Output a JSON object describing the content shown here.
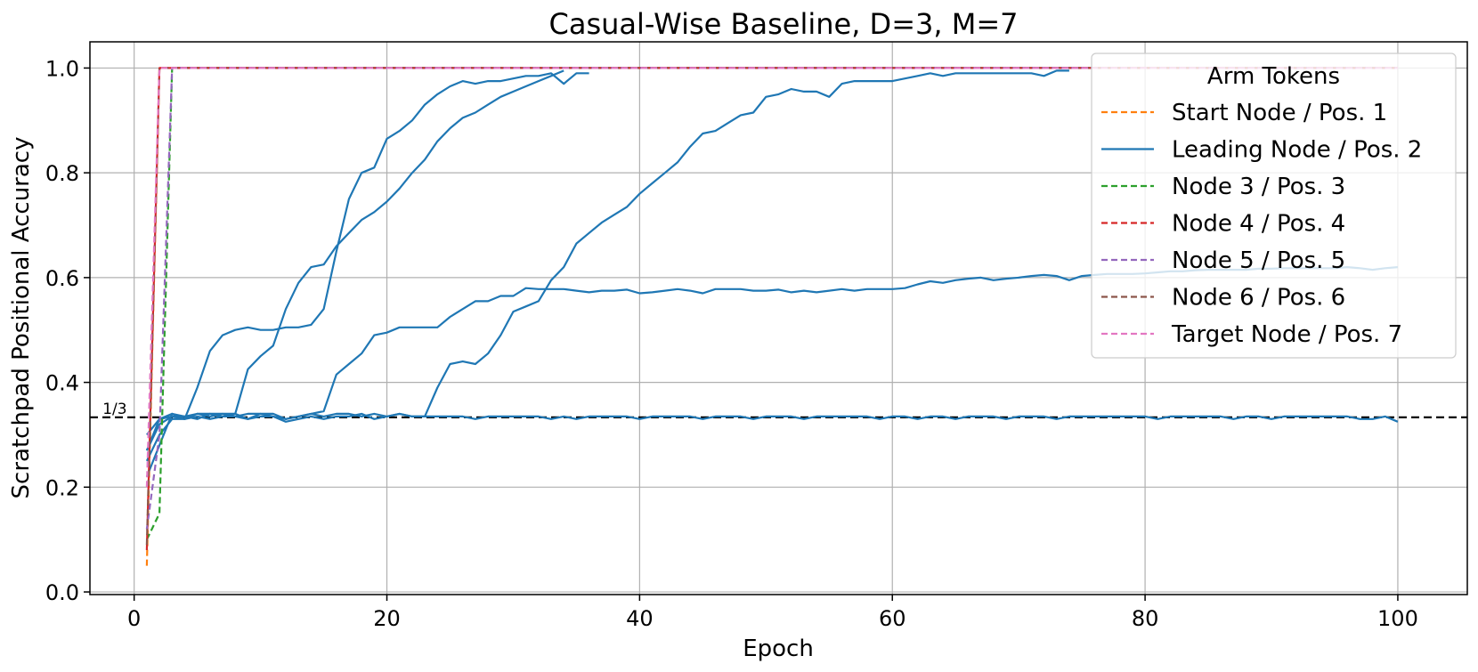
{
  "chart_data": {
    "type": "line",
    "title": "Casual-Wise Baseline, D=3, M=7",
    "xlabel": "Epoch",
    "ylabel": "Scratchpad Positional Accuracy",
    "xlim": [
      -3.5,
      105.5
    ],
    "ylim": [
      -0.005,
      1.05
    ],
    "xticks": [
      "0",
      "20",
      "40",
      "60",
      "80",
      "100"
    ],
    "xtick_values": [
      0,
      20,
      40,
      60,
      80,
      100
    ],
    "yticks": [
      "0.0",
      "0.2",
      "0.4",
      "0.6",
      "0.8",
      "1.0"
    ],
    "ytick_values": [
      0,
      0.2,
      0.4,
      0.6,
      0.8,
      1.0
    ],
    "grid": true,
    "reference_line": {
      "y": 0.3333,
      "label": "1/3",
      "color": "#000000",
      "style": "dashed"
    },
    "legend": {
      "title": "Arm Tokens",
      "position": "top-right"
    },
    "series": [
      {
        "name": "Start Node / Pos. 1",
        "color": "#ff7f0e",
        "style": "dashed",
        "legend": true,
        "x": [
          1,
          2,
          3,
          4,
          100
        ],
        "y": [
          0.05,
          1.0,
          1.0,
          1.0,
          1.0
        ]
      },
      {
        "name": "Leading Node / Pos. 2",
        "color": "#1f77b4",
        "style": "solid",
        "legend": true,
        "x": [
          1,
          2,
          3,
          4,
          5,
          6,
          7,
          8,
          9,
          10,
          11,
          12,
          13,
          14,
          15,
          16,
          17,
          18,
          19,
          20,
          21,
          22,
          23,
          24,
          25,
          26,
          27,
          28,
          29,
          30,
          31,
          32,
          33,
          34,
          35,
          36
        ],
        "y": [
          0.25,
          0.3,
          0.33,
          0.33,
          0.39,
          0.46,
          0.49,
          0.5,
          0.505,
          0.5,
          0.5,
          0.505,
          0.505,
          0.51,
          0.54,
          0.65,
          0.75,
          0.8,
          0.81,
          0.865,
          0.88,
          0.9,
          0.93,
          0.95,
          0.965,
          0.975,
          0.97,
          0.975,
          0.975,
          0.98,
          0.985,
          0.985,
          0.99,
          0.97,
          0.99,
          0.99
        ]
      },
      {
        "name": "",
        "color": "#1f77b4",
        "style": "solid",
        "legend": false,
        "x": [
          1,
          2,
          3,
          4,
          5,
          6,
          7,
          8,
          9,
          10,
          11,
          12,
          13,
          14,
          15,
          16,
          17,
          18,
          19,
          20,
          21,
          22,
          23,
          24,
          25,
          26,
          27,
          28,
          29,
          30,
          31,
          32,
          33,
          34
        ],
        "y": [
          0.27,
          0.33,
          0.34,
          0.33,
          0.34,
          0.34,
          0.34,
          0.34,
          0.425,
          0.45,
          0.47,
          0.54,
          0.59,
          0.62,
          0.625,
          0.66,
          0.685,
          0.71,
          0.725,
          0.745,
          0.77,
          0.8,
          0.825,
          0.86,
          0.885,
          0.905,
          0.915,
          0.93,
          0.945,
          0.955,
          0.965,
          0.975,
          0.985,
          0.995
        ]
      },
      {
        "name": "",
        "color": "#1f77b4",
        "style": "solid",
        "legend": false,
        "x": [
          1,
          2,
          3,
          4,
          5,
          6,
          7,
          8,
          9,
          10,
          11,
          12,
          13,
          14,
          15,
          16,
          17,
          18,
          19,
          20,
          21,
          22,
          23,
          24,
          25,
          26,
          27,
          28,
          29,
          30,
          31,
          32,
          33,
          34,
          35,
          36,
          37,
          38,
          39,
          40,
          41,
          42,
          43,
          44,
          45,
          46,
          47,
          48,
          49,
          50,
          51,
          52,
          53,
          54,
          55,
          56,
          57,
          58,
          59,
          60,
          61,
          62,
          63,
          64,
          65,
          66,
          67,
          68,
          69,
          70,
          71,
          72,
          73,
          74
        ],
        "y": [
          0.22,
          0.28,
          0.34,
          0.335,
          0.34,
          0.335,
          0.34,
          0.335,
          0.34,
          0.34,
          0.335,
          0.33,
          0.335,
          0.34,
          0.335,
          0.34,
          0.34,
          0.335,
          0.34,
          0.335,
          0.34,
          0.335,
          0.335,
          0.39,
          0.435,
          0.44,
          0.435,
          0.455,
          0.49,
          0.535,
          0.545,
          0.555,
          0.595,
          0.62,
          0.665,
          0.685,
          0.705,
          0.72,
          0.735,
          0.76,
          0.78,
          0.8,
          0.82,
          0.85,
          0.875,
          0.88,
          0.895,
          0.91,
          0.915,
          0.945,
          0.95,
          0.96,
          0.955,
          0.955,
          0.945,
          0.97,
          0.975,
          0.975,
          0.975,
          0.975,
          0.98,
          0.985,
          0.99,
          0.985,
          0.99,
          0.99,
          0.99,
          0.99,
          0.99,
          0.99,
          0.99,
          0.985,
          0.995,
          0.995
        ]
      },
      {
        "name": "",
        "color": "#1f77b4",
        "style": "solid",
        "legend": false,
        "x": [
          1,
          2,
          3,
          4,
          5,
          6,
          7,
          8,
          9,
          10,
          11,
          12,
          13,
          14,
          15,
          16,
          17,
          18,
          19,
          20,
          21,
          22,
          23,
          24,
          25,
          26,
          27,
          28,
          29,
          30,
          31,
          32,
          33,
          34,
          35,
          36,
          37,
          38,
          39,
          40,
          41,
          42,
          43,
          44,
          45,
          46,
          47,
          48,
          49,
          50,
          51,
          52,
          53,
          54,
          55,
          56,
          57,
          58,
          59,
          60,
          61,
          62,
          63,
          64,
          65,
          66,
          67,
          68,
          69,
          70,
          71,
          72,
          73,
          74,
          75,
          76,
          77,
          78,
          79,
          80,
          81,
          82,
          83,
          84,
          85,
          86,
          87,
          88,
          89,
          90,
          91,
          92,
          93,
          94,
          95,
          96,
          97,
          98,
          99,
          100
        ],
        "y": [
          0.3,
          0.33,
          0.335,
          0.33,
          0.335,
          0.33,
          0.335,
          0.34,
          0.33,
          0.34,
          0.34,
          0.33,
          0.335,
          0.34,
          0.345,
          0.415,
          0.435,
          0.455,
          0.49,
          0.495,
          0.505,
          0.505,
          0.505,
          0.505,
          0.525,
          0.54,
          0.555,
          0.555,
          0.565,
          0.565,
          0.58,
          0.578,
          0.578,
          0.578,
          0.575,
          0.572,
          0.575,
          0.575,
          0.577,
          0.57,
          0.572,
          0.575,
          0.578,
          0.575,
          0.57,
          0.578,
          0.578,
          0.578,
          0.575,
          0.575,
          0.577,
          0.572,
          0.575,
          0.572,
          0.575,
          0.578,
          0.575,
          0.578,
          0.578,
          0.578,
          0.58,
          0.587,
          0.593,
          0.59,
          0.595,
          0.598,
          0.6,
          0.595,
          0.598,
          0.6,
          0.603,
          0.605,
          0.603,
          0.595,
          0.603,
          0.605,
          0.607,
          0.607,
          0.607,
          0.608,
          0.61,
          0.612,
          0.612,
          0.614,
          0.615,
          0.615,
          0.615,
          0.615,
          0.617,
          0.617,
          0.618,
          0.618,
          0.618,
          0.618,
          0.618,
          0.62,
          0.618,
          0.615,
          0.618,
          0.62
        ]
      },
      {
        "name": "",
        "color": "#1f77b4",
        "style": "solid",
        "legend": false,
        "x": [
          1,
          2,
          3,
          4,
          5,
          6,
          7,
          8,
          9,
          10,
          11,
          12,
          13,
          14,
          15,
          16,
          17,
          18,
          19,
          20,
          21,
          22,
          23,
          24,
          25,
          26,
          27,
          28,
          29,
          30,
          31,
          32,
          33,
          34,
          35,
          36,
          37,
          38,
          39,
          40,
          41,
          42,
          43,
          44,
          45,
          46,
          47,
          48,
          49,
          50,
          51,
          52,
          53,
          54,
          55,
          56,
          57,
          58,
          59,
          60,
          61,
          62,
          63,
          64,
          65,
          66,
          67,
          68,
          69,
          70,
          71,
          72,
          73,
          74,
          75,
          76,
          77,
          78,
          79,
          80,
          81,
          82,
          83,
          84,
          85,
          86,
          87,
          88,
          89,
          90,
          91,
          92,
          93,
          94,
          95,
          96,
          97,
          98,
          99,
          100
        ],
        "y": [
          0.27,
          0.32,
          0.335,
          0.335,
          0.33,
          0.34,
          0.335,
          0.335,
          0.33,
          0.335,
          0.335,
          0.325,
          0.33,
          0.335,
          0.33,
          0.335,
          0.335,
          0.34,
          0.33,
          0.335,
          0.34,
          0.335,
          0.335,
          0.335,
          0.335,
          0.335,
          0.33,
          0.335,
          0.335,
          0.335,
          0.335,
          0.335,
          0.33,
          0.335,
          0.33,
          0.335,
          0.335,
          0.335,
          0.335,
          0.33,
          0.335,
          0.335,
          0.335,
          0.335,
          0.33,
          0.335,
          0.335,
          0.335,
          0.33,
          0.335,
          0.335,
          0.335,
          0.33,
          0.335,
          0.335,
          0.335,
          0.335,
          0.335,
          0.33,
          0.335,
          0.335,
          0.33,
          0.335,
          0.335,
          0.33,
          0.335,
          0.335,
          0.335,
          0.33,
          0.335,
          0.335,
          0.335,
          0.33,
          0.335,
          0.335,
          0.335,
          0.335,
          0.335,
          0.335,
          0.335,
          0.33,
          0.335,
          0.335,
          0.335,
          0.335,
          0.335,
          0.33,
          0.335,
          0.335,
          0.33,
          0.335,
          0.335,
          0.335,
          0.335,
          0.335,
          0.335,
          0.33,
          0.33,
          0.335,
          0.325
        ]
      },
      {
        "name": "Node 3 / Pos. 3",
        "color": "#2ca02c",
        "style": "dashed",
        "legend": true,
        "x": [
          1,
          2,
          3,
          4,
          100
        ],
        "y": [
          0.1,
          0.15,
          1.0,
          1.0,
          1.0
        ]
      },
      {
        "name": "Node 4 / Pos. 4",
        "color": "#d62728",
        "style": "dashed",
        "legend": true,
        "x": [
          1,
          2,
          3,
          4,
          100
        ],
        "y": [
          0.08,
          1.0,
          1.0,
          1.0,
          1.0
        ]
      },
      {
        "name": "Node 5 / Pos. 5",
        "color": "#9467bd",
        "style": "dashed",
        "legend": true,
        "x": [
          1,
          2,
          3,
          4,
          100
        ],
        "y": [
          0.12,
          0.3,
          1.0,
          1.0,
          1.0
        ]
      },
      {
        "name": "Node 6 / Pos. 6",
        "color": "#8c564b",
        "style": "dashed",
        "legend": true,
        "x": [
          1,
          2,
          3,
          4,
          100
        ],
        "y": [
          0.09,
          1.0,
          1.0,
          1.0,
          1.0
        ]
      },
      {
        "name": "Target Node / Pos. 7",
        "color": "#e377c2",
        "style": "dashed",
        "legend": true,
        "x": [
          1,
          2,
          3,
          4,
          100
        ],
        "y": [
          0.2,
          1.0,
          1.0,
          1.0,
          1.0
        ]
      }
    ]
  }
}
